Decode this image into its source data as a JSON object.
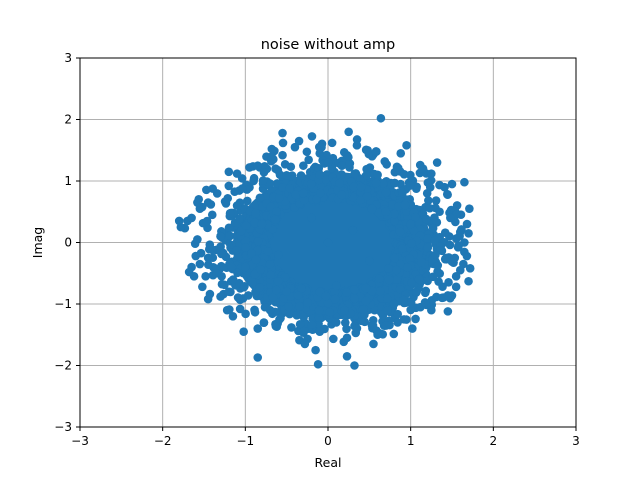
{
  "chart_data": {
    "type": "scatter",
    "title": "noise without amp",
    "xlabel": "Real",
    "ylabel": "Imag",
    "xlim": [
      -3,
      3
    ],
    "ylim": [
      -3,
      3
    ],
    "xticks": [
      -3,
      -2,
      -1,
      0,
      1,
      2,
      3
    ],
    "yticks": [
      -3,
      -2,
      -1,
      0,
      1,
      2,
      3
    ],
    "xtick_labels": [
      "−3",
      "−2",
      "−1",
      "0",
      "1",
      "2",
      "3"
    ],
    "ytick_labels": [
      "−3",
      "−2",
      "−1",
      "0",
      "1",
      "2",
      "3"
    ],
    "grid": true,
    "marker_color": "#1f77b4",
    "series": [
      {
        "points": [
          [
            0.0,
            0.0
          ],
          [
            0.3,
            0.2
          ],
          [
            -0.2,
            0.4
          ],
          [
            0.5,
            -0.3
          ],
          [
            -0.6,
            -0.2
          ],
          [
            0.1,
            -0.7
          ],
          [
            -0.3,
            0.8
          ],
          [
            0.7,
            0.5
          ],
          [
            -0.8,
            0.3
          ],
          [
            0.4,
            0.9
          ],
          [
            -0.5,
            -0.8
          ],
          [
            0.9,
            -0.1
          ],
          [
            -1.0,
            -0.4
          ],
          [
            1.0,
            0.3
          ],
          [
            -0.1,
            1.1
          ],
          [
            0.2,
            -1.1
          ],
          [
            -1.1,
            0.6
          ],
          [
            1.1,
            -0.6
          ],
          [
            0.6,
            1.1
          ],
          [
            -0.7,
            -1.1
          ],
          [
            1.2,
            0.8
          ],
          [
            -1.2,
            -0.8
          ],
          [
            0.8,
            -1.0
          ],
          [
            -0.9,
            1.0
          ],
          [
            1.3,
            -0.2
          ],
          [
            -1.3,
            0.1
          ],
          [
            0.0,
            1.3
          ],
          [
            0.1,
            -1.3
          ],
          [
            1.35,
            0.5
          ],
          [
            -1.35,
            -0.5
          ],
          [
            0.64,
            2.02
          ],
          [
            0.95,
            1.58
          ],
          [
            0.25,
            1.8
          ],
          [
            -0.55,
            1.78
          ],
          [
            -0.35,
            1.65
          ],
          [
            0.88,
            1.45
          ],
          [
            1.32,
            1.3
          ],
          [
            1.5,
            0.95
          ],
          [
            1.65,
            0.98
          ],
          [
            1.41,
            0.9
          ],
          [
            1.15,
            1.2
          ],
          [
            1.25,
            1.12
          ],
          [
            1.71,
            0.55
          ],
          [
            1.55,
            0.45
          ],
          [
            1.48,
            0.4
          ],
          [
            1.7,
            0.15
          ],
          [
            1.6,
            0.17
          ],
          [
            1.65,
            0.0
          ],
          [
            1.58,
            -0.05
          ],
          [
            1.68,
            -0.22
          ],
          [
            1.72,
            -0.42
          ],
          [
            1.6,
            -0.45
          ],
          [
            1.55,
            -0.55
          ],
          [
            1.7,
            -0.63
          ],
          [
            1.55,
            -0.72
          ],
          [
            1.38,
            -0.9
          ],
          [
            1.45,
            -0.86
          ],
          [
            1.25,
            -1.1
          ],
          [
            1.45,
            -1.12
          ],
          [
            1.02,
            -1.4
          ],
          [
            0.92,
            -1.25
          ],
          [
            0.6,
            -1.5
          ],
          [
            0.55,
            -1.65
          ],
          [
            0.23,
            -1.55
          ],
          [
            0.32,
            -2.0
          ],
          [
            0.23,
            -1.85
          ],
          [
            -0.1,
            -1.45
          ],
          [
            -0.15,
            -1.75
          ],
          [
            -0.28,
            -1.65
          ],
          [
            -0.12,
            -1.98
          ],
          [
            -0.85,
            -1.87
          ],
          [
            -1.02,
            -1.45
          ],
          [
            -0.85,
            -1.4
          ],
          [
            -1.15,
            -1.2
          ],
          [
            -1.22,
            -1.1
          ],
          [
            -1.3,
            -0.88
          ],
          [
            -1.45,
            -0.92
          ],
          [
            -1.52,
            -0.72
          ],
          [
            -1.62,
            -0.55
          ],
          [
            -1.65,
            -0.4
          ],
          [
            -1.68,
            -0.48
          ],
          [
            -1.48,
            -0.55
          ],
          [
            -1.55,
            -0.35
          ],
          [
            -1.45,
            -0.25
          ],
          [
            -1.6,
            -0.22
          ],
          [
            -1.4,
            -0.12
          ],
          [
            -1.58,
            0.05
          ],
          [
            -1.78,
            0.25
          ],
          [
            -1.8,
            0.35
          ],
          [
            -1.7,
            0.35
          ],
          [
            -1.65,
            0.4
          ],
          [
            -1.55,
            0.55
          ],
          [
            -1.58,
            0.65
          ],
          [
            -1.45,
            0.65
          ],
          [
            -1.4,
            0.45
          ],
          [
            -1.2,
            0.92
          ],
          [
            -1.2,
            1.15
          ],
          [
            -1.1,
            1.12
          ],
          [
            -0.95,
            1.22
          ],
          [
            -0.85,
            1.25
          ],
          [
            -0.68,
            1.52
          ],
          [
            -0.55,
            1.42
          ],
          [
            -0.4,
            1.55
          ],
          [
            -0.1,
            1.45
          ],
          [
            0.05,
            1.62
          ],
          [
            0.35,
            1.58
          ],
          [
            0.48,
            1.5
          ],
          [
            0.58,
            1.48
          ]
        ]
      }
    ]
  }
}
